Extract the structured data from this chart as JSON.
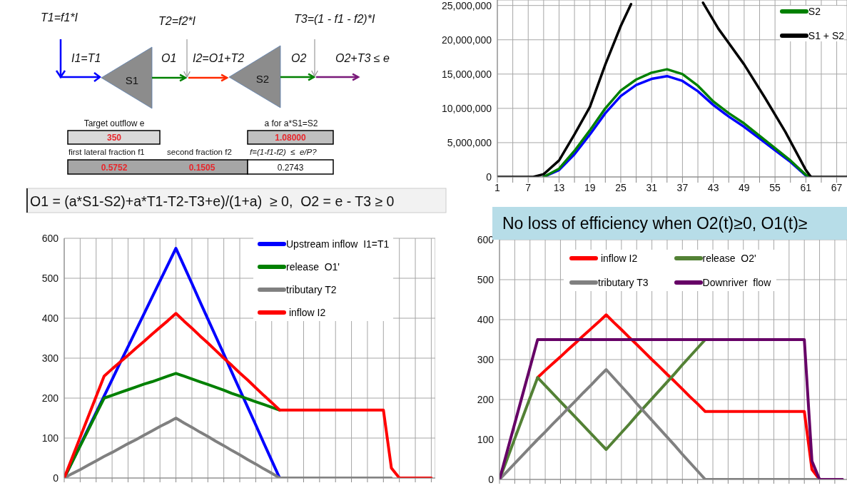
{
  "chart_data": [
    {
      "type": "other",
      "annotations": [
        "T1=f1*I",
        "T2=f2*I",
        "T3=(1 - f1 - f2)*I",
        "I1=T1",
        "O1",
        "I2=O1+T2",
        "O2",
        "O2+T3 ≤ e",
        "S1",
        "S2",
        "Target outflow e",
        "a for a*S1=S2",
        "350",
        "1.08000",
        "first lateral fraction f1",
        "second fraction f2",
        "f=(1-f1-f2)  ≤  e/P?",
        "0.5752",
        "0.1505",
        "0.2743",
        "O1 = (a*S1-S2)+a*T1-T2-T3+e)/(1+a)  ≥ 0,  O2 = e - T3 ≥ 0"
      ]
    },
    {
      "type": "line",
      "xlim": [
        1,
        69
      ],
      "xticks": [
        1,
        {
          "value": 4,
          "label": null
        },
        7,
        {
          "value": 10,
          "label": null
        },
        13,
        {
          "value": 16,
          "label": null
        },
        19,
        {
          "value": 22,
          "label": null
        },
        25,
        {
          "value": 28,
          "label": null
        },
        31,
        {
          "value": 34,
          "label": null
        },
        37,
        {
          "value": 40,
          "label": null
        },
        43,
        {
          "value": 46,
          "label": null
        },
        49,
        {
          "value": 52,
          "label": null
        },
        55,
        {
          "value": 58,
          "label": null
        },
        61,
        {
          "value": 64,
          "label": null
        },
        67
      ],
      "ylim": [
        0,
        25800000
      ],
      "yticks": [
        0,
        {
          "value": 5000000,
          "label": "5,000,000"
        },
        {
          "value": 10000000,
          "label": "10,000,000"
        },
        {
          "value": 15000000,
          "label": "15,000,000"
        },
        {
          "value": 20000000,
          "label": "20,000,000"
        },
        {
          "value": 25000000,
          "label": "25,000,000"
        }
      ],
      "grid": true,
      "legend": "top right",
      "series": [
        {
          "color": "#0000ff",
          "x": [
            10,
            13,
            16,
            19,
            22,
            25,
            28,
            31,
            34,
            37,
            40,
            43,
            46,
            49,
            52,
            55,
            58,
            61,
            62
          ],
          "values": [
            0,
            1000000,
            3300000,
            6200000,
            9300000,
            11800000,
            13400000,
            14300000,
            14700000,
            14000000,
            12500000,
            10500000,
            8800000,
            7300000,
            5600000,
            3900000,
            2200000,
            200000,
            0
          ]
        },
        {
          "name": "S2",
          "color": "#008000",
          "x": [
            10,
            13,
            16,
            19,
            22,
            25,
            28,
            31,
            34,
            37,
            40,
            43,
            46,
            49,
            52,
            55,
            58,
            61,
            62
          ],
          "values": [
            0,
            1200000,
            3800000,
            6800000,
            10000000,
            12600000,
            14200000,
            15200000,
            15700000,
            15000000,
            13300000,
            11000000,
            9300000,
            7800000,
            6000000,
            4200000,
            2400000,
            300000,
            0
          ]
        },
        {
          "name": "S1 + S2",
          "color": "#000000",
          "x": [
            1,
            8,
            10,
            13,
            16,
            19,
            22,
            25,
            27,
            28,
            40,
            41,
            44,
            49,
            53,
            57,
            61,
            62,
            69
          ],
          "values": [
            0,
            0,
            400000,
            2400000,
            6200000,
            10200000,
            16400000,
            22000000,
            25200000,
            null,
            null,
            25400000,
            21600000,
            16400000,
            11600000,
            6600000,
            1000000,
            0,
            0
          ]
        }
      ]
    },
    {
      "type": "line",
      "categories": [
        null,
        null,
        null,
        null,
        null,
        null,
        null,
        null,
        null,
        null,
        null,
        null,
        null,
        null,
        null,
        null,
        null,
        null,
        null,
        null,
        null,
        null,
        null,
        null,
        null,
        null,
        null,
        null,
        null,
        null,
        null,
        null,
        null,
        null,
        null,
        null,
        null,
        null,
        null,
        null,
        null,
        null,
        null,
        null,
        null,
        null,
        null
      ],
      "ylim": [
        0,
        600
      ],
      "yticks": [
        0,
        100,
        200,
        300,
        400,
        500,
        600
      ],
      "grid": true,
      "tick_labels": "y",
      "legend": "top right",
      "series": [
        {
          "name": "Upstream inflow  I1=T1",
          "color": "#0000ff",
          "values": [
            0,
            41,
            82,
            123,
            164,
            205,
            246,
            288,
            329,
            370,
            411,
            452,
            493,
            534,
            575,
            531,
            487,
            442,
            398,
            354,
            310,
            265,
            221,
            177,
            133,
            88,
            44,
            0,
            null,
            null,
            null,
            null,
            null,
            null,
            null,
            null,
            null,
            null,
            null,
            null,
            null,
            null,
            null,
            null,
            null,
            null,
            null
          ]
        },
        {
          "name": "release  O1'",
          "color": "#008000",
          "values": [
            0,
            40,
            80,
            120,
            160,
            200,
            207,
            214,
            221,
            228,
            235,
            241,
            248,
            255,
            262,
            255,
            248,
            241,
            234,
            227,
            220,
            212,
            205,
            198,
            191,
            184,
            177,
            170,
            null,
            null,
            null,
            null,
            null,
            null,
            null,
            null,
            null,
            null,
            null,
            null,
            null,
            null,
            null,
            null,
            null,
            null,
            null
          ]
        },
        {
          "name": "tributary T2",
          "color": "#808080",
          "values": [
            0,
            11,
            21,
            32,
            43,
            54,
            64,
            75,
            86,
            96,
            107,
            118,
            129,
            139,
            150,
            138,
            127,
            115,
            104,
            92,
            81,
            69,
            58,
            46,
            35,
            23,
            12,
            0,
            0,
            0,
            0,
            0,
            0,
            0,
            0,
            0,
            0,
            0,
            0,
            0,
            0,
            0,
            null,
            null,
            null,
            null,
            null
          ]
        },
        {
          "name": " inflow I2",
          "color": "#ff0000",
          "values": [
            0,
            51,
            102,
            153,
            204,
            255,
            273,
            290,
            307,
            325,
            342,
            360,
            377,
            394,
            412,
            393,
            375,
            356,
            338,
            319,
            300,
            282,
            263,
            245,
            226,
            207,
            189,
            170,
            170,
            170,
            170,
            170,
            170,
            170,
            170,
            170,
            170,
            170,
            170,
            170,
            170,
            25,
            0,
            0,
            0,
            0,
            0
          ]
        }
      ]
    },
    {
      "type": "line",
      "title": "No loss of efficiency when O2(t)≥0, O1(t)≥",
      "categories": [
        null,
        null,
        null,
        null,
        null,
        null,
        null,
        null,
        null,
        null,
        null,
        null,
        null,
        null,
        null,
        null,
        null,
        null,
        null,
        null,
        null,
        null,
        null,
        null,
        null,
        null,
        null,
        null,
        null,
        null,
        null,
        null,
        null,
        null,
        null,
        null,
        null,
        null,
        null,
        null,
        null,
        null,
        null,
        null,
        null,
        null
      ],
      "ylim": [
        0,
        600
      ],
      "yticks": [
        0,
        100,
        200,
        300,
        400,
        500,
        600
      ],
      "grid": true,
      "tick_labels": "y",
      "legend": "top",
      "series": [
        {
          "name": " inflow I2",
          "color": "#ff0000",
          "values": [
            null,
            null,
            null,
            null,
            null,
            255,
            273,
            290,
            307,
            325,
            342,
            360,
            377,
            394,
            412,
            393,
            375,
            356,
            338,
            319,
            300,
            282,
            263,
            245,
            226,
            207,
            189,
            170,
            170,
            170,
            170,
            170,
            170,
            170,
            170,
            170,
            170,
            170,
            170,
            170,
            170,
            25,
            0,
            null,
            null,
            null
          ]
        },
        {
          "name": "release  O2'",
          "color": "#538135",
          "values": [
            0,
            51,
            102,
            153,
            204,
            255,
            235,
            215,
            195,
            175,
            155,
            135,
            115,
            95,
            75,
            96,
            117,
            138,
            160,
            181,
            202,
            223,
            244,
            265,
            287,
            308,
            329,
            350,
            null,
            null,
            null,
            null,
            null,
            null,
            null,
            null,
            null,
            null,
            null,
            null,
            null,
            null,
            null,
            null,
            null,
            null
          ]
        },
        {
          "name": "tributary T3",
          "color": "#808080",
          "values": [
            0,
            20,
            40,
            60,
            80,
            100,
            119,
            139,
            158,
            178,
            197,
            217,
            236,
            256,
            275,
            254,
            233,
            212,
            190,
            169,
            148,
            127,
            106,
            85,
            63,
            42,
            21,
            0,
            0,
            0,
            0,
            0,
            0,
            0,
            0,
            0,
            0,
            0,
            0,
            0,
            0,
            0,
            0,
            0,
            0,
            0
          ]
        },
        {
          "name": "Downriver  flow",
          "color": "#660066",
          "values": [
            0,
            70,
            140,
            210,
            280,
            350,
            350,
            350,
            350,
            350,
            350,
            350,
            350,
            350,
            350,
            350,
            350,
            350,
            350,
            350,
            350,
            350,
            350,
            350,
            350,
            350,
            350,
            350,
            350,
            350,
            350,
            350,
            350,
            350,
            350,
            350,
            350,
            350,
            350,
            350,
            350,
            46,
            0,
            0,
            0,
            0
          ]
        }
      ]
    }
  ]
}
